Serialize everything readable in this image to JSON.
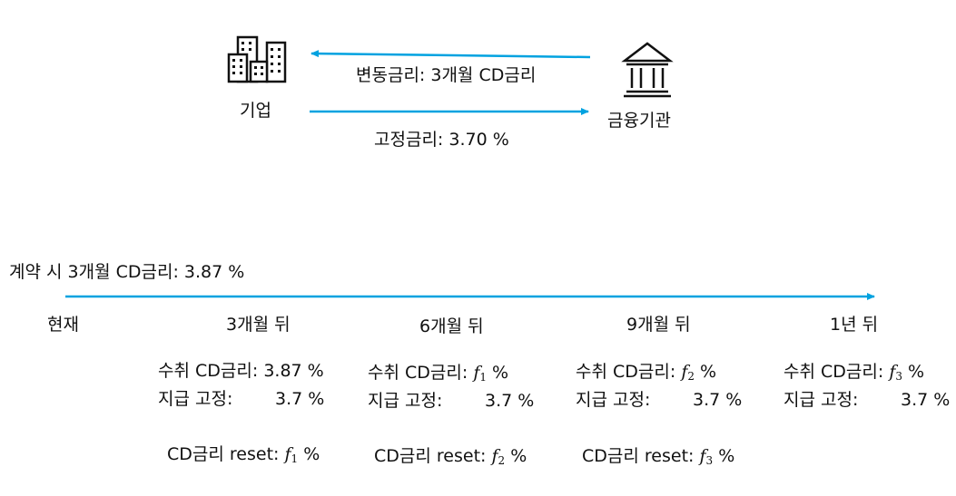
{
  "colors": {
    "arrow": "#00A2E0",
    "text": "#111111"
  },
  "top": {
    "company": {
      "label": "기업",
      "icon": "office-buildings-icon"
    },
    "bank": {
      "label": "금융기관",
      "icon": "bank-building-icon"
    },
    "floating_rate": "변동금리: 3개월 CD금리",
    "fixed_rate": "고정금리: 3.70 %"
  },
  "timeline": {
    "initial_rate": "계약 시 3개월 CD금리: 3.87 %",
    "points": [
      "현재",
      "3개월 뒤",
      "6개월 뒤",
      "9개월 뒤",
      "1년 뒤"
    ],
    "periods": [
      {
        "receive_label": "수취 CD금리:",
        "receive_value": "3.87 %",
        "pay_label": "지급 고정:",
        "pay_value": "3.7 %",
        "reset_label": "CD금리 reset:",
        "reset_var": "f",
        "reset_sub": "1",
        "reset_unit": "%"
      },
      {
        "receive_label": "수취 CD금리:",
        "receive_var": "f",
        "receive_sub": "1",
        "receive_unit": "%",
        "pay_label": "지급 고정:",
        "pay_value": "3.7 %",
        "reset_label": "CD금리 reset:",
        "reset_var": "f",
        "reset_sub": "2",
        "reset_unit": "%"
      },
      {
        "receive_label": "수취 CD금리:",
        "receive_var": "f",
        "receive_sub": "2",
        "receive_unit": "%",
        "pay_label": "지급 고정:",
        "pay_value": "3.7 %",
        "reset_label": "CD금리 reset:",
        "reset_var": "f",
        "reset_sub": "3",
        "reset_unit": "%"
      },
      {
        "receive_label": "수취 CD금리:",
        "receive_var": "f",
        "receive_sub": "3",
        "receive_unit": "%",
        "pay_label": "지급 고정:",
        "pay_value": "3.7 %"
      }
    ]
  }
}
